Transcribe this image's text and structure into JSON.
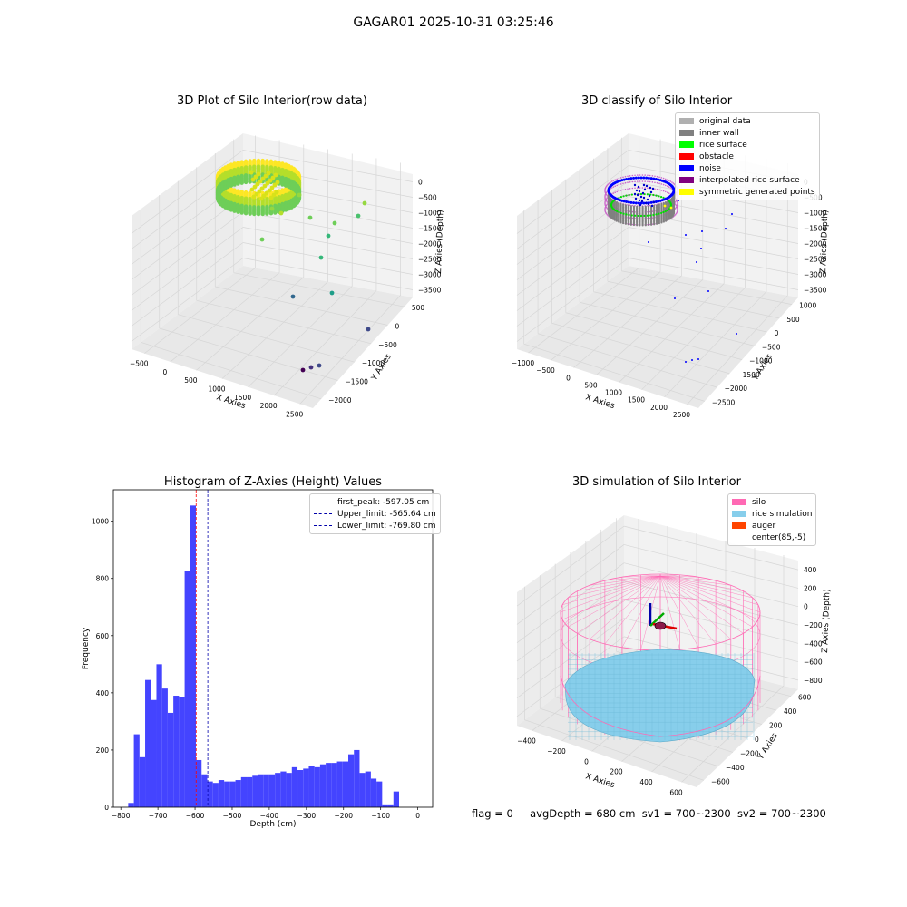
{
  "suptitle": "GAGAR01 2025-10-31 03:25:46",
  "footer": {
    "flag": "flag = 0",
    "avg": "avgDepth = 680 cm",
    "sv1": "sv1 = 700~2300",
    "sv2": "sv2 = 700~2300"
  },
  "chart_data": [
    {
      "type": "scatter3d",
      "title": "3D Plot of Silo Interior(row data)",
      "xlabel": "X Axies",
      "ylabel": "Y Axies",
      "zlabel": "Z Axies (Depth)",
      "x_ticks": [
        "−500",
        "0",
        "500",
        "1000",
        "1500",
        "2000",
        "2500"
      ],
      "y_ticks": [
        "500",
        "0",
        "−500",
        "−1000",
        "−1500",
        "−2000"
      ],
      "z_ticks": [
        "0",
        "−500",
        "−1000",
        "−1500",
        "−2000",
        "−2500",
        "−3000",
        "−3500"
      ],
      "colormap": [
        "#440154",
        "#31688e",
        "#35b779",
        "#fde725"
      ]
    },
    {
      "type": "scatter3d",
      "title": "3D classify of Silo Interior",
      "xlabel": "X Axies",
      "ylabel": "Y Axies",
      "zlabel": "Z Axies (Depth)",
      "x_ticks": [
        "−1000",
        "−500",
        "0",
        "500",
        "1000",
        "1500",
        "2000",
        "2500"
      ],
      "y_ticks": [
        "1000",
        "500",
        "0",
        "−500",
        "−1000",
        "−1500",
        "−2000",
        "−2500"
      ],
      "z_ticks": [
        "0",
        "−500",
        "−1000",
        "−1500",
        "−2000",
        "−2500",
        "−3000",
        "−3500"
      ],
      "legend": [
        {
          "label": "original data",
          "color": "#b0b0b0"
        },
        {
          "label": "inner wall",
          "color": "#808080"
        },
        {
          "label": "rice surface",
          "color": "#00ff00"
        },
        {
          "label": "obstacle",
          "color": "#ff0000"
        },
        {
          "label": "noise",
          "color": "#0000ff"
        },
        {
          "label": "interpolated rice surface",
          "color": "#800080"
        },
        {
          "label": "symmetric generated points",
          "color": "#ffff00"
        }
      ],
      "legend_placement": "top-right"
    },
    {
      "type": "bar",
      "title": "Histogram of Z-Axies (Height) Values",
      "xlabel": "Depth (cm)",
      "ylabel": "Frequency",
      "xlim": [
        -820,
        40
      ],
      "ylim": [
        0,
        1110
      ],
      "bin_start": -780,
      "bin_width": 15.2,
      "values": [
        15,
        255,
        175,
        445,
        375,
        500,
        415,
        330,
        390,
        385,
        825,
        1055,
        165,
        115,
        90,
        85,
        95,
        90,
        90,
        95,
        105,
        105,
        110,
        115,
        115,
        115,
        120,
        125,
        120,
        140,
        130,
        135,
        145,
        140,
        150,
        155,
        155,
        160,
        160,
        185,
        200,
        120,
        125,
        100,
        90,
        10,
        10,
        55
      ],
      "x_ticks": [
        -800,
        -700,
        -600,
        -500,
        -400,
        -300,
        -200,
        -100,
        0
      ],
      "y_ticks": [
        0,
        200,
        400,
        600,
        800,
        1000
      ],
      "bar_color": "#4444ff",
      "vlines": [
        {
          "label": "first_peak: -597.05 cm",
          "x": -597.05,
          "color": "#ff0000"
        },
        {
          "label": "Upper_limit: -565.64 cm",
          "x": -565.64,
          "color": "#0000aa"
        },
        {
          "label": "Lower_limit: -769.80 cm",
          "x": -769.8,
          "color": "#0000aa"
        }
      ],
      "legend_placement": "top-right"
    },
    {
      "type": "surface3d",
      "title": "3D simulation of Silo Interior",
      "xlabel": "X Axies",
      "ylabel": "Y Axies",
      "zlabel": "Z Axies (Depth)",
      "x_ticks": [
        "−400",
        "−200",
        "0",
        "200",
        "400",
        "600"
      ],
      "y_ticks": [
        "600",
        "400",
        "200",
        "0",
        "−200",
        "−400",
        "−600"
      ],
      "z_ticks": [
        "400",
        "200",
        "0",
        "−200",
        "−400",
        "−600",
        "−800"
      ],
      "legend": [
        {
          "label": "silo",
          "color": "#ff69b4"
        },
        {
          "label": "rice simulation",
          "color": "#87ceeb"
        },
        {
          "label": "auger",
          "color": "#ff4500"
        },
        {
          "label": "center(85,-5)",
          "color": "#ffffff"
        }
      ],
      "legend_placement": "top-right"
    }
  ]
}
